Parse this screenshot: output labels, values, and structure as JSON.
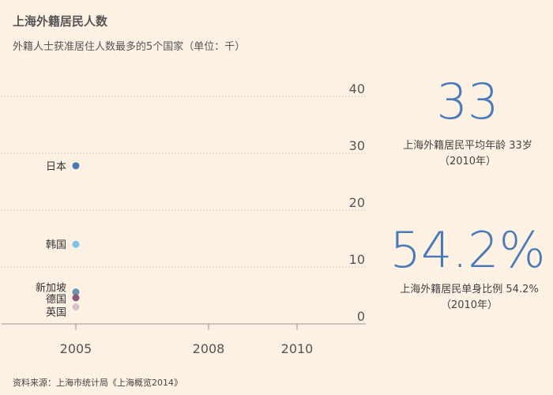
{
  "header": {
    "title": "上海外籍居民人数",
    "subtitle": "外籍人士获准居住人数最多的5个国家（单位：千）"
  },
  "chart_data": {
    "type": "scatter",
    "xlim": [
      2002,
      2011
    ],
    "ylim": [
      0,
      40
    ],
    "x_ticks": [
      2005,
      2008,
      2010
    ],
    "y_ticks": [
      0,
      10,
      20,
      30,
      40
    ],
    "grid": true,
    "series": [
      {
        "name": "日本",
        "x": 2005,
        "y": 27.8,
        "color": "#4b78b0"
      },
      {
        "name": "韩国",
        "x": 2005,
        "y": 14.0,
        "color": "#7fc3e8"
      },
      {
        "name": "新加坡",
        "x": 2005,
        "y": 5.6,
        "color": "#6b94a8"
      },
      {
        "name": "德国",
        "x": 2005,
        "y": 4.6,
        "color": "#8a5a78"
      },
      {
        "name": "英国",
        "x": 2005,
        "y": 3.0,
        "color": "#d6c2c8"
      }
    ]
  },
  "stats": [
    {
      "value": "33",
      "caption": "上海外籍居民平均年龄 33岁",
      "note": "（2010年）"
    },
    {
      "value": "54.2%",
      "caption": "上海外籍居民单身比例 54.2%",
      "note": "（2010年）"
    }
  ],
  "footer": {
    "source": "资料来源：上海市统计局《上海概览2014》"
  }
}
